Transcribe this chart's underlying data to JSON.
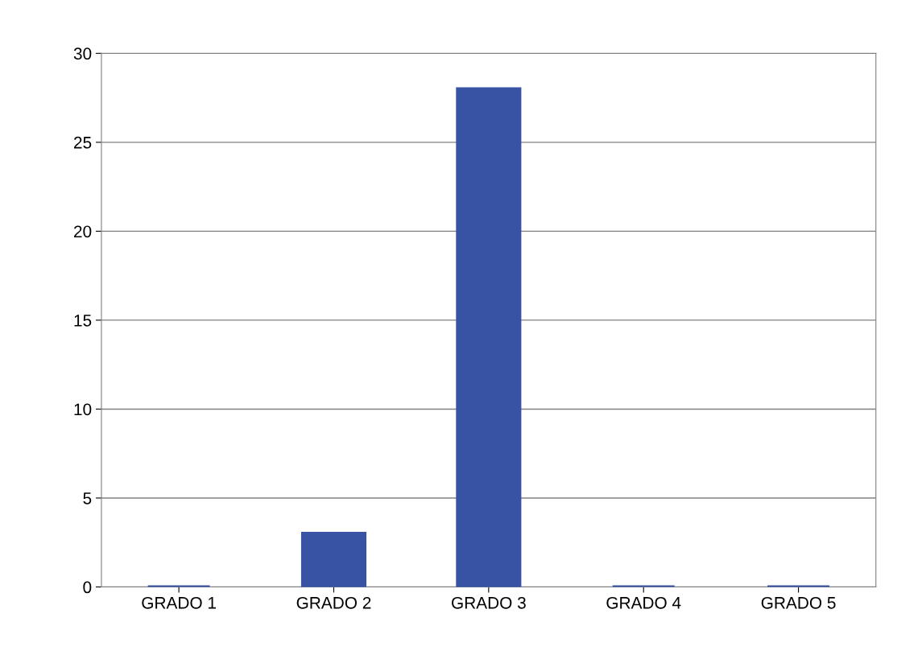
{
  "chart_data": {
    "type": "bar",
    "categories": [
      "GRADO 1",
      "GRADO 2",
      "GRADO 3",
      "GRADO 4",
      "GRADO 5"
    ],
    "values": [
      0,
      3,
      28,
      0,
      0
    ],
    "color": "#3953a4",
    "ylim": [
      0,
      30
    ],
    "yticks": [
      0,
      5,
      10,
      15,
      20,
      25,
      30
    ],
    "grid": "y"
  }
}
